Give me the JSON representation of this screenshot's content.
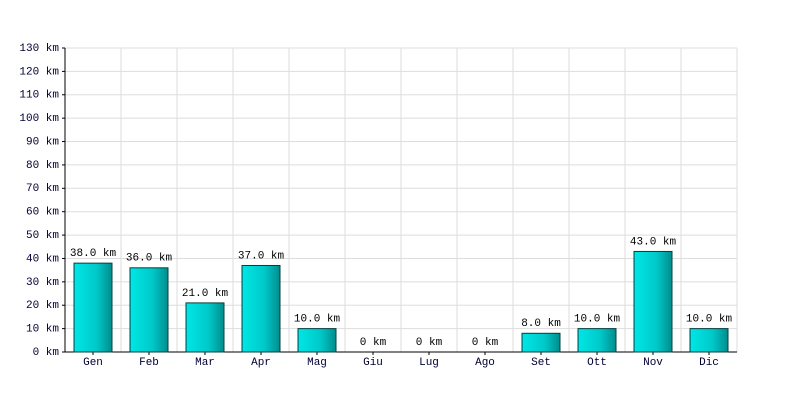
{
  "chart_data": {
    "type": "bar",
    "categories": [
      "Gen",
      "Feb",
      "Mar",
      "Apr",
      "Mag",
      "Giu",
      "Lug",
      "Ago",
      "Set",
      "Ott",
      "Nov",
      "Dic"
    ],
    "values": [
      38,
      36,
      21,
      37,
      10,
      0,
      0,
      0,
      8,
      10,
      43,
      10
    ],
    "value_labels": [
      "38.0 km",
      "36.0 km",
      "21.0 km",
      "37.0 km",
      "10.0 km",
      "0 km",
      "0 km",
      "0 km",
      "8.0 km",
      "10.0 km",
      "43.0 km",
      "10.0 km"
    ],
    "color": "#00c8c8",
    "ylim": [
      0,
      130
    ],
    "yticks": [
      {
        "value": 0,
        "label": "0 km"
      },
      {
        "value": 10,
        "label": "10 km"
      },
      {
        "value": 20,
        "label": "20 km"
      },
      {
        "value": 30,
        "label": "30 km"
      },
      {
        "value": 40,
        "label": "40 km"
      },
      {
        "value": 50,
        "label": "50 km"
      },
      {
        "value": 60,
        "label": "60 km"
      },
      {
        "value": 70,
        "label": "70 km"
      },
      {
        "value": 80,
        "label": "80 km"
      },
      {
        "value": 90,
        "label": "90 km"
      },
      {
        "value": 100,
        "label": "100 km"
      },
      {
        "value": 110,
        "label": "110 km"
      },
      {
        "value": 120,
        "label": "120 km"
      },
      {
        "value": 130,
        "label": "130 km"
      }
    ],
    "grid": true
  }
}
